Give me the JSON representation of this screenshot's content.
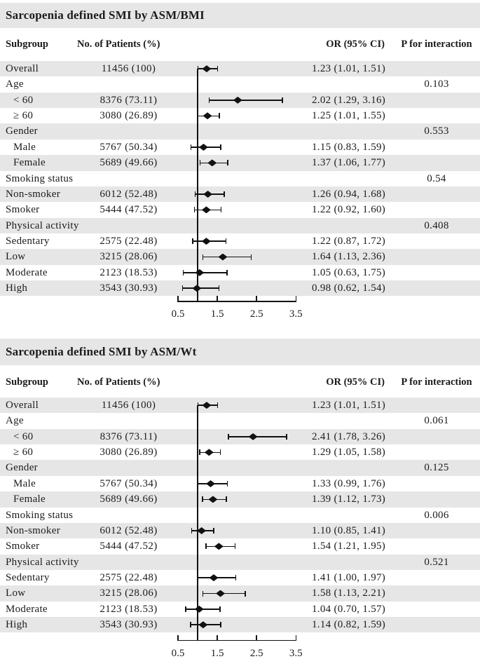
{
  "colors": {
    "stripe": "#e6e6e6",
    "ink": "#1b1b1b",
    "background": "#ffffff"
  },
  "columns": {
    "subgroup": "Subgroup",
    "patients": "No. of Patients (%)",
    "or": "OR (95% CI)",
    "p": "P for interaction"
  },
  "chart_data": [
    {
      "type": "scatter",
      "variant": "forest-plot",
      "title": "Sarcopenia defined SMI by ASM/BMI",
      "xlabel": "",
      "xlim": [
        0.5,
        3.5
      ],
      "xticks": [
        0.5,
        1.5,
        2.5,
        3.5
      ],
      "ref_line": 1.0,
      "grid": false,
      "legend": false,
      "rows": [
        {
          "subgroup": "Overall",
          "patients": "11456 (100)",
          "or": 1.23,
          "ci": [
            1.01,
            1.51
          ],
          "or_text": "1.23 (1.01, 1.51)"
        },
        {
          "subgroup": "Age",
          "p": "0.103"
        },
        {
          "subgroup": "< 60",
          "indent": true,
          "patients": "8376 (73.11)",
          "or": 2.02,
          "ci": [
            1.29,
            3.16
          ],
          "or_text": "2.02 (1.29, 3.16)"
        },
        {
          "subgroup": "≥ 60",
          "indent": true,
          "patients": "3080 (26.89)",
          "or": 1.25,
          "ci": [
            1.01,
            1.55
          ],
          "or_text": "1.25 (1.01, 1.55)"
        },
        {
          "subgroup": "Gender",
          "p": "0.553"
        },
        {
          "subgroup": "Male",
          "indent": true,
          "patients": "5767 (50.34)",
          "or": 1.15,
          "ci": [
            0.83,
            1.59
          ],
          "or_text": "1.15 (0.83, 1.59)"
        },
        {
          "subgroup": "Female",
          "indent": true,
          "patients": "5689 (49.66)",
          "or": 1.37,
          "ci": [
            1.06,
            1.77
          ],
          "or_text": "1.37 (1.06, 1.77)"
        },
        {
          "subgroup": "Smoking status",
          "p": "0.54"
        },
        {
          "subgroup": "Non-smoker",
          "patients": "6012 (52.48)",
          "or": 1.26,
          "ci": [
            0.94,
            1.68
          ],
          "or_text": "1.26 (0.94, 1.68)"
        },
        {
          "subgroup": "Smoker",
          "patients": "5444 (47.52)",
          "or": 1.22,
          "ci": [
            0.92,
            1.6
          ],
          "or_text": "1.22 (0.92, 1.60)"
        },
        {
          "subgroup": "Physical activity",
          "p": "0.408"
        },
        {
          "subgroup": "Sedentary",
          "patients": "2575 (22.48)",
          "or": 1.22,
          "ci": [
            0.87,
            1.72
          ],
          "or_text": "1.22 (0.87, 1.72)"
        },
        {
          "subgroup": "Low",
          "patients": "3215 (28.06)",
          "or": 1.64,
          "ci": [
            1.13,
            2.36
          ],
          "or_text": "1.64 (1.13, 2.36)"
        },
        {
          "subgroup": "Moderate",
          "patients": "2123 (18.53)",
          "or": 1.05,
          "ci": [
            0.63,
            1.75
          ],
          "or_text": "1.05 (0.63, 1.75)"
        },
        {
          "subgroup": "High",
          "patients": "3543 (30.93)",
          "or": 0.98,
          "ci": [
            0.62,
            1.54
          ],
          "or_text": "0.98 (0.62, 1.54)"
        }
      ]
    },
    {
      "type": "scatter",
      "variant": "forest-plot",
      "title": "Sarcopenia defined SMI by ASM/Wt",
      "xlabel": "",
      "xlim": [
        0.5,
        3.5
      ],
      "xticks": [
        0.5,
        1.5,
        2.5,
        3.5
      ],
      "ref_line": 1.0,
      "grid": false,
      "legend": false,
      "rows": [
        {
          "subgroup": "Overall",
          "patients": "11456 (100)",
          "or": 1.23,
          "ci": [
            1.01,
            1.51
          ],
          "or_text": "1.23 (1.01, 1.51)"
        },
        {
          "subgroup": "Age",
          "p": "0.061"
        },
        {
          "subgroup": "< 60",
          "indent": true,
          "patients": "8376 (73.11)",
          "or": 2.41,
          "ci": [
            1.78,
            3.26
          ],
          "or_text": "2.41 (1.78, 3.26)"
        },
        {
          "subgroup": "≥ 60",
          "indent": true,
          "patients": "3080 (26.89)",
          "or": 1.29,
          "ci": [
            1.05,
            1.58
          ],
          "or_text": "1.29 (1.05, 1.58)"
        },
        {
          "subgroup": "Gender",
          "p": "0.125"
        },
        {
          "subgroup": "Male",
          "indent": true,
          "patients": "5767 (50.34)",
          "or": 1.33,
          "ci": [
            0.99,
            1.76
          ],
          "or_text": "1.33 (0.99, 1.76)"
        },
        {
          "subgroup": "Female",
          "indent": true,
          "patients": "5689 (49.66)",
          "or": 1.39,
          "ci": [
            1.12,
            1.73
          ],
          "or_text": "1.39 (1.12, 1.73)"
        },
        {
          "subgroup": "Smoking status",
          "p": "0.006"
        },
        {
          "subgroup": "Non-smoker",
          "patients": "6012 (52.48)",
          "or": 1.1,
          "ci": [
            0.85,
            1.41
          ],
          "or_text": "1.10 (0.85, 1.41)"
        },
        {
          "subgroup": "Smoker",
          "patients": "5444 (47.52)",
          "or": 1.54,
          "ci": [
            1.21,
            1.95
          ],
          "or_text": "1.54 (1.21, 1.95)"
        },
        {
          "subgroup": "Physical activity",
          "p": "0.521"
        },
        {
          "subgroup": "Sedentary",
          "patients": "2575 (22.48)",
          "or": 1.41,
          "ci": [
            1.0,
            1.97
          ],
          "or_text": "1.41 (1.00, 1.97)"
        },
        {
          "subgroup": "Low",
          "patients": "3215 (28.06)",
          "or": 1.58,
          "ci": [
            1.13,
            2.21
          ],
          "or_text": "1.58 (1.13, 2.21)"
        },
        {
          "subgroup": "Moderate",
          "patients": "2123 (18.53)",
          "or": 1.04,
          "ci": [
            0.7,
            1.57
          ],
          "or_text": "1.04 (0.70, 1.57)"
        },
        {
          "subgroup": "High",
          "patients": "3543 (30.93)",
          "or": 1.14,
          "ci": [
            0.82,
            1.59
          ],
          "or_text": "1.14 (0.82, 1.59)"
        }
      ]
    }
  ]
}
